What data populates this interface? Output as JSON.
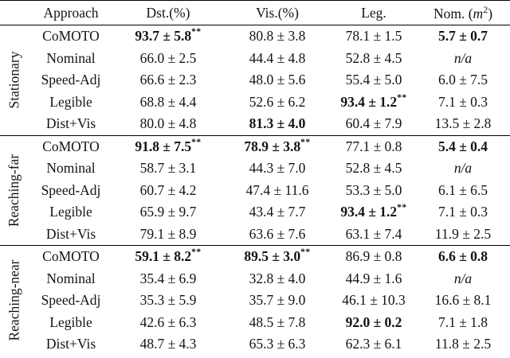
{
  "table": {
    "columns": [
      {
        "label": "Approach"
      },
      {
        "label": "Dst.(%)"
      },
      {
        "label": "Vis.(%)"
      },
      {
        "label": "Leg."
      },
      {
        "parts": {
          "prefix": "Nom. (",
          "variable": "m",
          "sup": "2",
          "suffix": ")"
        }
      }
    ],
    "groups": [
      {
        "label": "Stationary",
        "rows": [
          {
            "approach": "CoMOTO",
            "cells": [
              {
                "value": "93.7 ± 5.8",
                "stars": "**",
                "bold": true
              },
              {
                "value": "80.8 ± 3.8"
              },
              {
                "value": "78.1 ± 1.5"
              },
              {
                "value": "5.7 ± 0.7",
                "bold": true
              }
            ]
          },
          {
            "approach": "Nominal",
            "cells": [
              {
                "value": "66.0 ± 2.5"
              },
              {
                "value": "44.4 ± 4.8"
              },
              {
                "value": "52.8 ± 4.5"
              },
              {
                "value": "n/a",
                "italic": true
              }
            ]
          },
          {
            "approach": "Speed-Adj",
            "cells": [
              {
                "value": "66.6 ± 2.3"
              },
              {
                "value": "48.0 ± 5.6"
              },
              {
                "value": "55.4 ± 5.0"
              },
              {
                "value": "6.0 ± 7.5"
              }
            ]
          },
          {
            "approach": "Legible",
            "cells": [
              {
                "value": "68.8 ± 4.4"
              },
              {
                "value": "52.6 ± 6.2"
              },
              {
                "value": "93.4 ± 1.2",
                "stars": "**",
                "bold": true
              },
              {
                "value": "7.1 ± 0.3"
              }
            ]
          },
          {
            "approach": "Dist+Vis",
            "cells": [
              {
                "value": "80.0 ± 4.8"
              },
              {
                "value": "81.3 ± 4.0",
                "bold": true
              },
              {
                "value": "60.4 ± 7.9"
              },
              {
                "value": "13.5 ± 2.8"
              }
            ]
          }
        ]
      },
      {
        "label": "Reaching-far",
        "rows": [
          {
            "approach": "CoMOTO",
            "cells": [
              {
                "value": "91.8 ± 7.5",
                "stars": "**",
                "bold": true
              },
              {
                "value": "78.9 ± 3.8",
                "stars": "**",
                "bold": true
              },
              {
                "value": "77.1 ± 0.8"
              },
              {
                "value": "5.4 ± 0.4",
                "bold": true
              }
            ]
          },
          {
            "approach": "Nominal",
            "cells": [
              {
                "value": "58.7 ± 3.1"
              },
              {
                "value": "44.3 ± 7.0"
              },
              {
                "value": "52.8 ± 4.5"
              },
              {
                "value": "n/a",
                "italic": true
              }
            ]
          },
          {
            "approach": "Speed-Adj",
            "cells": [
              {
                "value": "60.7 ± 4.2"
              },
              {
                "value": "47.4 ± 11.6"
              },
              {
                "value": "53.3 ± 5.0"
              },
              {
                "value": "6.1 ± 6.5"
              }
            ]
          },
          {
            "approach": "Legible",
            "cells": [
              {
                "value": "65.9 ± 9.7"
              },
              {
                "value": "43.4 ± 7.7"
              },
              {
                "value": "93.4 ± 1.2",
                "stars": "**",
                "bold": true
              },
              {
                "value": "7.1 ± 0.3"
              }
            ]
          },
          {
            "approach": "Dist+Vis",
            "cells": [
              {
                "value": "79.1 ± 8.9"
              },
              {
                "value": "63.6 ± 7.6"
              },
              {
                "value": "63.1 ± 7.4"
              },
              {
                "value": "11.9 ± 2.5"
              }
            ]
          }
        ]
      },
      {
        "label": "Reaching-near",
        "rows": [
          {
            "approach": "CoMOTO",
            "cells": [
              {
                "value": "59.1 ± 8.2",
                "stars": "**",
                "bold": true
              },
              {
                "value": "89.5 ± 3.0",
                "stars": "**",
                "bold": true
              },
              {
                "value": "86.9 ± 0.8"
              },
              {
                "value": "6.6 ± 0.8",
                "bold": true
              }
            ]
          },
          {
            "approach": "Nominal",
            "cells": [
              {
                "value": "35.4 ± 6.9"
              },
              {
                "value": "32.8 ± 4.0"
              },
              {
                "value": "44.9 ± 1.6"
              },
              {
                "value": "n/a",
                "italic": true
              }
            ]
          },
          {
            "approach": "Speed-Adj",
            "cells": [
              {
                "value": "35.3 ± 5.9"
              },
              {
                "value": "35.7 ± 9.0"
              },
              {
                "value": "46.1 ± 10.3"
              },
              {
                "value": "16.6 ± 8.1"
              }
            ]
          },
          {
            "approach": "Legible",
            "cells": [
              {
                "value": "42.6 ± 6.3"
              },
              {
                "value": "48.5 ± 7.8"
              },
              {
                "value": "92.0 ± 0.2",
                "bold": true
              },
              {
                "value": "7.1 ± 1.8"
              }
            ]
          },
          {
            "approach": "Dist+Vis",
            "cells": [
              {
                "value": "48.7 ± 4.3"
              },
              {
                "value": "65.3 ± 6.3"
              },
              {
                "value": "62.3 ± 6.1"
              },
              {
                "value": "11.8 ± 2.5"
              }
            ]
          }
        ]
      }
    ]
  }
}
